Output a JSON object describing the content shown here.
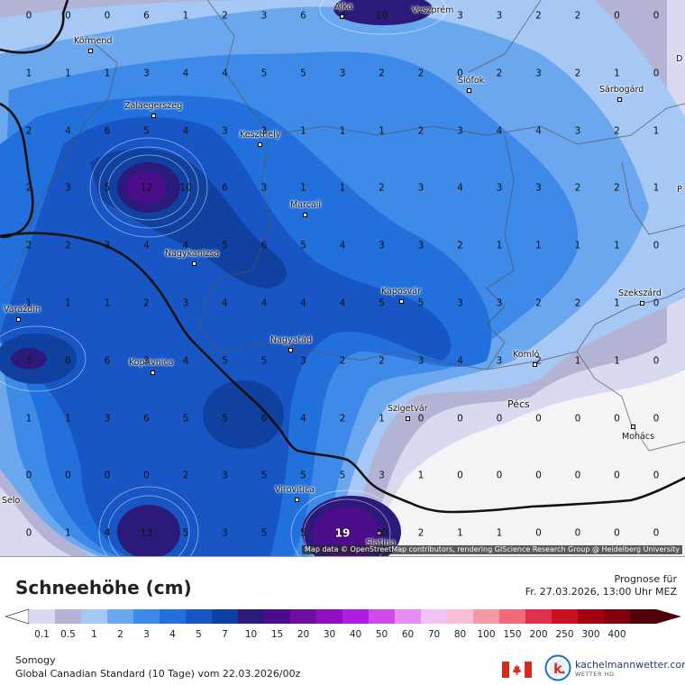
{
  "map": {
    "attribution": "Map data © OpenStreetMap contributors, rendering GIScience Research Group @ Heidelberg University",
    "places": [
      {
        "name": "Ajka",
        "key": "ajka"
      },
      {
        "name": "Veszprém",
        "key": "veszprem"
      },
      {
        "name": "Körmend",
        "key": "kormend"
      },
      {
        "name": "Siófok",
        "key": "siofok"
      },
      {
        "name": "Sárbogárd",
        "key": "sarbogard"
      },
      {
        "name": "Zalaegerszeg",
        "key": "zalaegerszeg"
      },
      {
        "name": "Keszthely",
        "key": "keszthely"
      },
      {
        "name": "Marcali",
        "key": "marcali"
      },
      {
        "name": "Nagykanizsa",
        "key": "nagykanizsa"
      },
      {
        "name": "Kaposvár",
        "key": "kaposvar"
      },
      {
        "name": "Szekszárd",
        "key": "szekszard"
      },
      {
        "name": "Varaždin",
        "key": "varazdin"
      },
      {
        "name": "Nagyatád",
        "key": "nagyatad"
      },
      {
        "name": "Koprivnica",
        "key": "koprivnica"
      },
      {
        "name": "Komló",
        "key": "komlo"
      },
      {
        "name": "Szigetvár",
        "key": "szigetvar"
      },
      {
        "name": "Pécs",
        "key": "pecs"
      },
      {
        "name": "Mohács",
        "key": "mohacs"
      },
      {
        "name": "Virovitica",
        "key": "virovitica"
      },
      {
        "name": "Slatina",
        "key": "slatina"
      },
      {
        "name": "Selo",
        "key": "selo"
      },
      {
        "name": "D",
        "key": "edge-d"
      },
      {
        "name": "P",
        "key": "edge-p"
      }
    ],
    "grid_values": [
      [
        "0",
        "0",
        "0",
        "6",
        "1",
        "2",
        "3",
        "6",
        "3",
        "10",
        "5",
        "3",
        "3",
        "2",
        "2",
        "0",
        "0"
      ],
      [
        "1",
        "1",
        "1",
        "3",
        "4",
        "4",
        "5",
        "5",
        "3",
        "2",
        "2",
        "0",
        "2",
        "3",
        "2",
        "1",
        "0"
      ],
      [
        "2",
        "4",
        "6",
        "5",
        "4",
        "3",
        "3",
        "1",
        "1",
        "1",
        "2",
        "3",
        "4",
        "4",
        "3",
        "2",
        "1"
      ],
      [
        "2",
        "3",
        "5",
        "12",
        "10",
        "6",
        "3",
        "1",
        "1",
        "2",
        "3",
        "4",
        "3",
        "3",
        "2",
        "2",
        "1"
      ],
      [
        "2",
        "2",
        "3",
        "4",
        "4",
        "5",
        "6",
        "5",
        "4",
        "3",
        "3",
        "2",
        "1",
        "1",
        "1",
        "1",
        "0"
      ],
      [
        "1",
        "1",
        "1",
        "2",
        "3",
        "4",
        "4",
        "4",
        "4",
        "5",
        "5",
        "3",
        "3",
        "2",
        "2",
        "1",
        "0"
      ],
      [
        "3",
        "6",
        "6",
        "3",
        "4",
        "5",
        "5",
        "3",
        "2",
        "2",
        "3",
        "4",
        "3",
        "2",
        "1",
        "1",
        "0"
      ],
      [
        "1",
        "1",
        "3",
        "6",
        "5",
        "5",
        "6",
        "4",
        "2",
        "1",
        "0",
        "0",
        "0",
        "0",
        "0",
        "0",
        "0"
      ],
      [
        "0",
        "0",
        "0",
        "0",
        "2",
        "3",
        "5",
        "5",
        "5",
        "3",
        "1",
        "0",
        "0",
        "0",
        "0",
        "0",
        "0"
      ],
      [
        "0",
        "1",
        "4",
        "13",
        "5",
        "3",
        "5",
        "5",
        "19",
        "10",
        "2",
        "1",
        "1",
        "0",
        "0",
        "0",
        "0"
      ]
    ],
    "colors": {
      "level_0": "#f4f4f7",
      "level_0_1": "#d9d9f0",
      "level_0_5": "#b3b3d6",
      "level_1": "#a6c8f5",
      "level_2": "#6ba7ef",
      "level_3": "#3d8ae8",
      "level_4": "#2170dc",
      "level_5": "#1756c4",
      "level_7": "#1040a0",
      "level_10": "#2b1a7a",
      "level_15": "#4b0d8a",
      "borders": "#111111",
      "regional_borders": "#666666"
    }
  },
  "legend": {
    "title": "Schneehöhe (cm)",
    "prognose_label": "Prognose für",
    "prognose_time": "Fr. 27.03.2026, 13:00 Uhr MEZ",
    "region": "Somogy",
    "model": "Global Canadian Standard (10 Tage) vom  22.03.2026/00z",
    "scale_labels": [
      "0.1",
      "0.5",
      "1",
      "2",
      "3",
      "4",
      "5",
      "7",
      "10",
      "15",
      "20",
      "30",
      "40",
      "50",
      "60",
      "70",
      "80",
      "100",
      "150",
      "200",
      "250",
      "300",
      "400"
    ],
    "scale_colors": [
      "#d9d9f0",
      "#b3b3d6",
      "#a6c8f5",
      "#6ba7ef",
      "#3d8ae8",
      "#2170dc",
      "#1756c4",
      "#1040a0",
      "#2b1a7a",
      "#4b0d8a",
      "#6f0fa0",
      "#9010c0",
      "#b01de0",
      "#d04ae8",
      "#e88ef2",
      "#f2c4f6",
      "#f7c0d8",
      "#f598a8",
      "#f06a78",
      "#e03050",
      "#c81020",
      "#a00010",
      "#800010",
      "#500008"
    ]
  },
  "brand": {
    "name": "kachelmannwetter.com",
    "sub": "WETTER HD"
  }
}
